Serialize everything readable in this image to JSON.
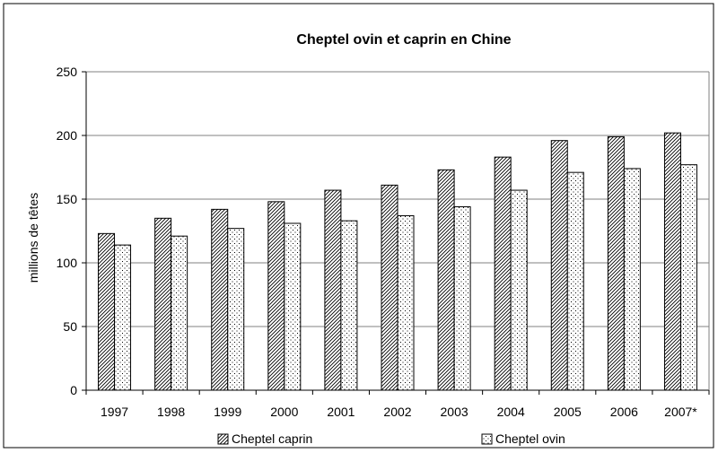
{
  "chart_data": {
    "type": "bar",
    "title": "Cheptel ovin et caprin en Chine",
    "xlabel": "",
    "ylabel": "millions de têtes",
    "ylim": [
      0,
      250
    ],
    "yticks": [
      0,
      50,
      100,
      150,
      200,
      250
    ],
    "grid": true,
    "legend_position": "bottom",
    "categories": [
      "1997",
      "1998",
      "1999",
      "2000",
      "2001",
      "2002",
      "2003",
      "2004",
      "2005",
      "2006",
      "2007*"
    ],
    "series": [
      {
        "name": "Cheptel caprin",
        "pattern": "diagonal-hatch",
        "color": "#000000",
        "values": [
          123,
          135,
          142,
          148,
          157,
          161,
          173,
          183,
          196,
          199,
          202
        ]
      },
      {
        "name": "Cheptel ovin",
        "pattern": "dots",
        "color": "#000000",
        "values": [
          114,
          121,
          127,
          131,
          133,
          137,
          144,
          157,
          171,
          174,
          177
        ]
      }
    ]
  }
}
